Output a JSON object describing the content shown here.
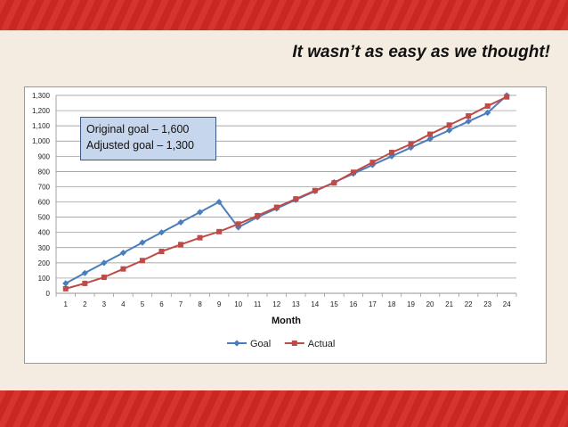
{
  "slide": {
    "title": "It wasn’t as easy as we thought!",
    "colors": {
      "band": "#d42a24",
      "background": "#f4ece0"
    }
  },
  "annotation": {
    "lines": [
      "Original goal – 1,600",
      "Adjusted goal – 1,300"
    ]
  },
  "chart_data": {
    "type": "line",
    "title": "",
    "xlabel": "Month",
    "ylabel": "",
    "x": [
      1,
      2,
      3,
      4,
      5,
      6,
      7,
      8,
      9,
      10,
      11,
      12,
      13,
      14,
      15,
      16,
      17,
      18,
      19,
      20,
      21,
      22,
      23,
      24
    ],
    "ylim": [
      0,
      1300
    ],
    "yticks": [
      0,
      100,
      200,
      300,
      400,
      500,
      600,
      700,
      800,
      900,
      1000,
      1100,
      1200,
      1300
    ],
    "ytick_labels": [
      "0",
      "100",
      "200",
      "300",
      "400",
      "500",
      "600",
      "700",
      "800",
      "900",
      "1,000",
      "1,100",
      "1,200",
      "1,300"
    ],
    "grid": true,
    "legend_position": "bottom",
    "series": [
      {
        "name": "Goal",
        "color": "#4a7ebb",
        "marker": "diamond",
        "values": [
          65,
          133,
          200,
          266,
          333,
          400,
          466,
          533,
          600,
          433,
          500,
          557,
          614,
          671,
          729,
          786,
          843,
          900,
          957,
          1014,
          1071,
          1129,
          1186,
          1300
        ]
      },
      {
        "name": "Actual",
        "color": "#be4b48",
        "marker": "square",
        "values": [
          30,
          65,
          105,
          160,
          215,
          275,
          320,
          365,
          405,
          455,
          510,
          565,
          620,
          675,
          725,
          795,
          860,
          925,
          980,
          1045,
          1105,
          1165,
          1230,
          1290
        ]
      }
    ]
  }
}
